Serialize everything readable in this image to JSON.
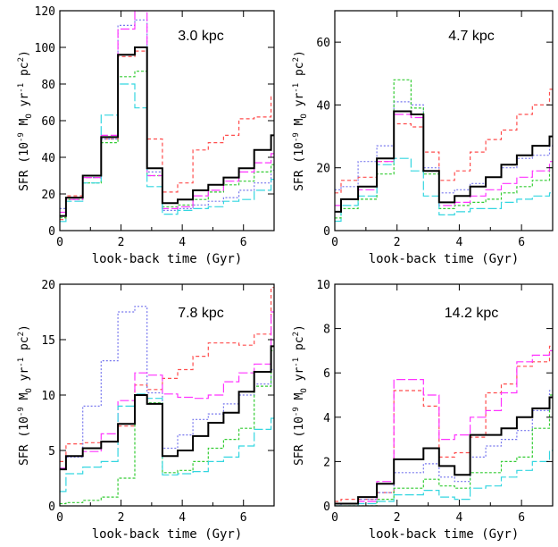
{
  "chart_data": [
    {
      "type": "line",
      "step": true,
      "annotation": "3.0 kpc",
      "xlabel": "look-back time (Gyr)",
      "ylabel": "SFR (10^-9 M_O yr^-1 pc^2)",
      "xlim": [
        0,
        7
      ],
      "ylim": [
        0,
        120
      ],
      "xticks": [
        "0",
        "2",
        "4",
        "6"
      ],
      "yticks": [
        "0",
        "20",
        "40",
        "60",
        "80",
        "100",
        "120"
      ],
      "x_edges": [
        0,
        0.2,
        0.75,
        1.35,
        1.9,
        2.45,
        2.85,
        3.35,
        3.85,
        4.35,
        4.85,
        5.35,
        5.85,
        6.35,
        6.9,
        7.0
      ],
      "series": [
        {
          "color": "#000000",
          "dash": "",
          "values": [
            8,
            18,
            30,
            51,
            96,
            100,
            34,
            15,
            17,
            22,
            25,
            29,
            34,
            44,
            52
          ]
        },
        {
          "color": "#ff4d4d",
          "dash": "4,3",
          "values": [
            6,
            19,
            29,
            50,
            95,
            98,
            50,
            21,
            26,
            44,
            48,
            52,
            61,
            62,
            73
          ]
        },
        {
          "color": "#33d6e0",
          "dash": "10,3",
          "values": [
            5,
            16,
            26,
            63,
            80,
            67,
            24,
            9,
            11,
            12,
            13,
            16,
            17,
            22,
            28
          ]
        },
        {
          "color": "#ff33ff",
          "dash": "10,3",
          "values": [
            10,
            17,
            29,
            52,
            110,
            122,
            30,
            12,
            13,
            19,
            22,
            27,
            32,
            37,
            42
          ]
        },
        {
          "color": "#33cc33",
          "dash": "3,2",
          "values": [
            7,
            17,
            26,
            48,
            84,
            87,
            30,
            13,
            14,
            17,
            21,
            25,
            27,
            32,
            36
          ]
        },
        {
          "color": "#7777ee",
          "dash": "2,2",
          "values": [
            12,
            18,
            29,
            50,
            112,
            115,
            32,
            11,
            12,
            14,
            16,
            18,
            22,
            26,
            33
          ]
        }
      ]
    },
    {
      "type": "line",
      "step": true,
      "annotation": "4.7 kpc",
      "xlabel": "look-back time (Gyr)",
      "ylabel": "SFR (10^-9 M_O yr^-1 pc^2)",
      "xlim": [
        0,
        7
      ],
      "ylim": [
        0,
        70
      ],
      "xticks": [
        "0",
        "2",
        "4",
        "6"
      ],
      "yticks": [
        "0",
        "20",
        "40",
        "60"
      ],
      "x_edges": [
        0,
        0.2,
        0.75,
        1.35,
        1.9,
        2.45,
        2.85,
        3.35,
        3.85,
        4.35,
        4.85,
        5.35,
        5.85,
        6.35,
        6.9,
        7.0
      ],
      "series": [
        {
          "color": "#000000",
          "dash": "",
          "values": [
            6,
            10,
            14,
            23,
            38,
            37,
            19,
            9,
            11,
            14,
            17,
            21,
            24,
            27,
            30
          ]
        },
        {
          "color": "#ff4d4d",
          "dash": "4,3",
          "values": [
            12,
            16,
            17,
            22,
            34,
            33,
            25,
            16,
            19,
            25,
            29,
            32,
            37,
            40,
            45
          ]
        },
        {
          "color": "#33d6e0",
          "dash": "10,3",
          "values": [
            3,
            8,
            11,
            21,
            23,
            19,
            11,
            5,
            6,
            7,
            7,
            9,
            10,
            11,
            12
          ]
        },
        {
          "color": "#ff33ff",
          "dash": "10,3",
          "values": [
            8,
            10,
            13,
            22,
            37,
            36,
            19,
            8,
            9,
            11,
            13,
            15,
            17,
            19,
            22
          ]
        },
        {
          "color": "#33cc33",
          "dash": "3,2",
          "values": [
            4,
            7,
            10,
            18,
            48,
            39,
            18,
            7,
            8,
            9,
            10,
            12,
            14,
            16,
            20
          ]
        },
        {
          "color": "#7777ee",
          "dash": "2,2",
          "values": [
            13,
            14,
            22,
            27,
            41,
            40,
            20,
            12,
            13,
            15,
            17,
            20,
            23,
            24,
            27
          ]
        }
      ]
    },
    {
      "type": "line",
      "step": true,
      "annotation": "7.8 kpc",
      "xlabel": "look-back time (Gyr)",
      "ylabel": "SFR (10^-9 M_O yr^-1 pc^2)",
      "xlim": [
        0,
        7
      ],
      "ylim": [
        0,
        20
      ],
      "xticks": [
        "0",
        "2",
        "4",
        "6"
      ],
      "yticks": [
        "0",
        "5",
        "10",
        "15",
        "20"
      ],
      "x_edges": [
        0,
        0.2,
        0.75,
        1.35,
        1.9,
        2.45,
        2.85,
        3.35,
        3.85,
        4.35,
        4.85,
        5.35,
        5.85,
        6.35,
        6.9,
        7.0
      ],
      "series": [
        {
          "color": "#000000",
          "dash": "",
          "values": [
            3.3,
            4.5,
            5.2,
            5.8,
            7.4,
            10.0,
            9.2,
            4.5,
            5.0,
            6.3,
            7.5,
            8.4,
            10.3,
            12.1,
            14.4
          ]
        },
        {
          "color": "#ff4d4d",
          "dash": "4,3",
          "values": [
            4.0,
            5.6,
            5.7,
            5.8,
            7.2,
            10.9,
            10.5,
            11.5,
            12.3,
            13.5,
            14.7,
            14.7,
            14.5,
            15.5,
            19.7
          ]
        },
        {
          "color": "#33d6e0",
          "dash": "10,3",
          "values": [
            1.3,
            2.9,
            3.5,
            4.0,
            9.0,
            10.1,
            9.7,
            2.8,
            2.9,
            3.1,
            4.0,
            4.4,
            5.4,
            6.9,
            7.9
          ]
        },
        {
          "color": "#ff33ff",
          "dash": "10,3",
          "values": [
            3.4,
            4.5,
            4.9,
            6.5,
            9.5,
            12.0,
            11.8,
            10.1,
            9.8,
            9.7,
            10.0,
            11.2,
            12.0,
            12.8,
            17.5
          ]
        },
        {
          "color": "#33cc33",
          "dash": "3,2",
          "values": [
            0.2,
            0.3,
            0.5,
            0.8,
            2.5,
            10.0,
            9.3,
            3.0,
            3.2,
            4.0,
            5.2,
            6.0,
            7.0,
            10.8,
            14.0
          ]
        },
        {
          "color": "#7777ee",
          "dash": "2,2",
          "values": [
            3.4,
            4.4,
            9.0,
            13.1,
            17.5,
            18.0,
            10.2,
            5.2,
            6.4,
            7.8,
            8.3,
            9.2,
            10.0,
            11.0,
            12.3
          ]
        }
      ]
    },
    {
      "type": "line",
      "step": true,
      "annotation": "14.2 kpc",
      "xlabel": "look-back time (Gyr)",
      "ylabel": "SFR (10^-9 M_O yr^-1 pc^2)",
      "xlim": [
        0,
        7
      ],
      "ylim": [
        0,
        10
      ],
      "xticks": [
        "0",
        "2",
        "4",
        "6"
      ],
      "yticks": [
        "0",
        "2",
        "4",
        "6",
        "8",
        "10"
      ],
      "x_edges": [
        0,
        0.2,
        0.75,
        1.35,
        1.9,
        2.45,
        2.85,
        3.35,
        3.85,
        4.35,
        4.85,
        5.35,
        5.85,
        6.35,
        6.9,
        7.0
      ],
      "series": [
        {
          "color": "#000000",
          "dash": "",
          "values": [
            0.1,
            0.1,
            0.4,
            1.0,
            2.1,
            2.1,
            2.6,
            1.8,
            1.4,
            3.2,
            3.2,
            3.5,
            4.0,
            4.4,
            4.9
          ]
        },
        {
          "color": "#ff4d4d",
          "dash": "4,3",
          "values": [
            0.2,
            0.3,
            0.3,
            0.6,
            5.2,
            5.2,
            4.5,
            2.2,
            2.4,
            3.1,
            5.1,
            5.5,
            6.3,
            6.5,
            7.2
          ]
        },
        {
          "color": "#33d6e0",
          "dash": "10,3",
          "values": [
            0.0,
            0.0,
            0.1,
            0.2,
            0.5,
            0.5,
            0.7,
            0.4,
            0.3,
            0.8,
            0.9,
            1.3,
            1.6,
            2.0,
            2.5
          ]
        },
        {
          "color": "#ff33ff",
          "dash": "10,3",
          "values": [
            0.1,
            0.1,
            0.2,
            1.1,
            5.7,
            5.7,
            5.0,
            3.0,
            3.2,
            4.0,
            4.3,
            5.1,
            6.5,
            6.8,
            7.0
          ]
        },
        {
          "color": "#33cc33",
          "dash": "3,2",
          "values": [
            0.0,
            0.0,
            0.0,
            0.3,
            0.8,
            0.8,
            1.2,
            0.9,
            0.8,
            1.5,
            1.5,
            2.0,
            2.2,
            3.5,
            5.0
          ]
        },
        {
          "color": "#7777ee",
          "dash": "2,2",
          "values": [
            0.0,
            0.1,
            0.3,
            0.6,
            1.5,
            1.5,
            1.9,
            1.3,
            1.1,
            2.2,
            2.7,
            3.0,
            3.4,
            4.3,
            5.2
          ]
        }
      ]
    }
  ]
}
